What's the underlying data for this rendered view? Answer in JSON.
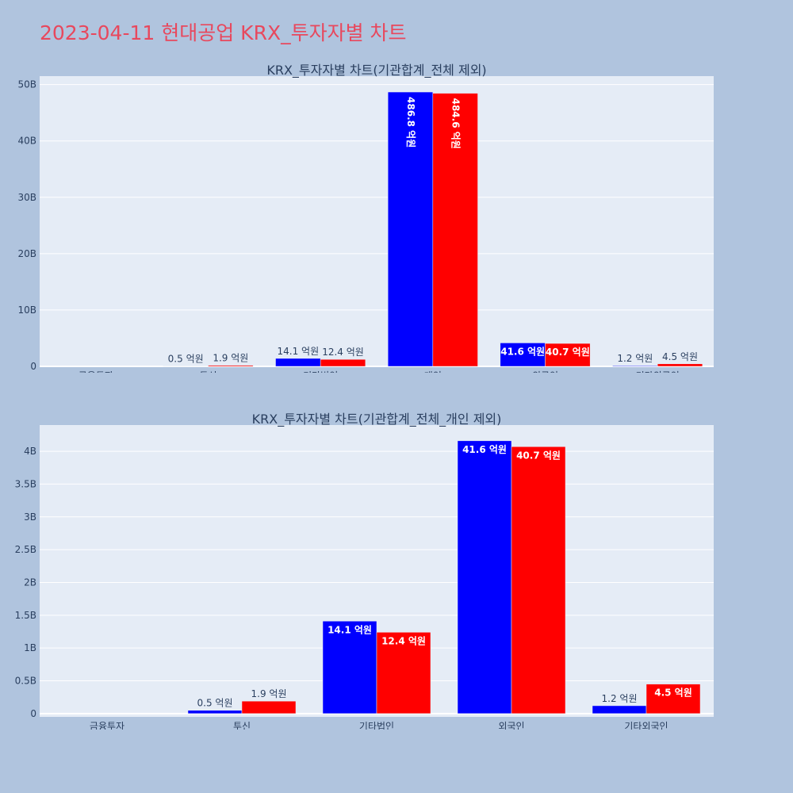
{
  "page": {
    "title": "2023-04-11 현대공업 KRX_투자자별 차트"
  },
  "colors": {
    "background": "#b0c4de",
    "plot_bg": "#e5ecf6",
    "series_blue": "#0000ff",
    "series_red": "#ff0000",
    "title": "#e8485d"
  },
  "chart_data": [
    {
      "type": "bar",
      "title": "KRX_투자자별 차트(기관합계_전체 제외)",
      "categories": [
        "금융투자",
        "투신",
        "기타법인",
        "개인",
        "외국인",
        "기타외국인"
      ],
      "series": [
        {
          "color": "#0000ff",
          "values": [
            0.0,
            0.05,
            1.41,
            48.68,
            4.16,
            0.12
          ],
          "labels": [
            "",
            "0.5 억원",
            "14.1 억원",
            "486.8 억원",
            "41.6 억원",
            "1.2 억원"
          ]
        },
        {
          "color": "#ff0000",
          "values": [
            0.0,
            0.19,
            1.24,
            48.46,
            4.07,
            0.45
          ],
          "labels": [
            "",
            "1.9 억원",
            "12.4 억원",
            "484.6 억원",
            "40.7 억원",
            "4.5 억원"
          ]
        }
      ],
      "ylim": [
        0,
        51.5
      ],
      "yticks": [
        0,
        10,
        20,
        30,
        40,
        50
      ],
      "ytick_labels": [
        "0",
        "10B",
        "20B",
        "30B",
        "40B",
        "50B"
      ],
      "grid": true
    },
    {
      "type": "bar",
      "title": "KRX_투자자별 차트(기관합계_전체_개인 제외)",
      "categories": [
        "금융투자",
        "투신",
        "기타법인",
        "외국인",
        "기타외국인"
      ],
      "series": [
        {
          "color": "#0000ff",
          "values": [
            0.0,
            0.05,
            1.41,
            4.16,
            0.12
          ],
          "labels": [
            "",
            "0.5 억원",
            "14.1 억원",
            "41.6 억원",
            "1.2 억원"
          ]
        },
        {
          "color": "#ff0000",
          "values": [
            0.0,
            0.19,
            1.24,
            4.07,
            0.45
          ],
          "labels": [
            "",
            "1.9 억원",
            "12.4 억원",
            "40.7 억원",
            "4.5 억원"
          ]
        }
      ],
      "ylim": [
        -0.05,
        4.4
      ],
      "yticks": [
        0,
        0.5,
        1,
        1.5,
        2,
        2.5,
        3,
        3.5,
        4
      ],
      "ytick_labels": [
        "0",
        "0.5B",
        "1B",
        "1.5B",
        "2B",
        "2.5B",
        "3B",
        "3.5B",
        "4B"
      ],
      "grid": true
    }
  ]
}
